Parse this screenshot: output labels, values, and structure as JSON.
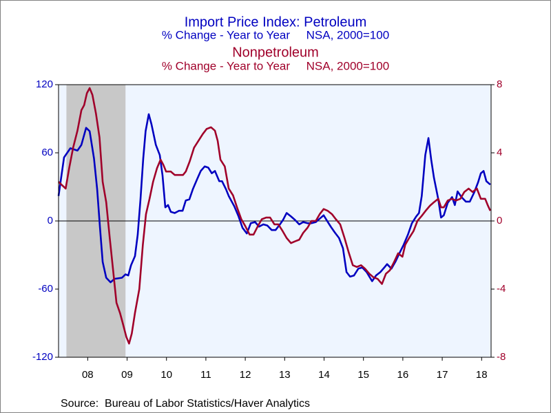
{
  "chart_data": {
    "type": "line",
    "source": "Source:  Bureau of Labor Statistics/Haver Analytics",
    "xlim": [
      2007.76,
      2018.74
    ],
    "xticks": [
      {
        "value": 2008.5,
        "label": "08"
      },
      {
        "value": 2009.5,
        "label": "09"
      },
      {
        "value": 2010.5,
        "label": "10"
      },
      {
        "value": 2011.5,
        "label": "11"
      },
      {
        "value": 2012.5,
        "label": "12"
      },
      {
        "value": 2013.5,
        "label": "13"
      },
      {
        "value": 2014.5,
        "label": "14"
      },
      {
        "value": 2015.5,
        "label": "15"
      },
      {
        "value": 2016.5,
        "label": "16"
      },
      {
        "value": 2017.5,
        "label": "17"
      },
      {
        "value": 2018.5,
        "label": "18"
      }
    ],
    "ylim": [
      -120,
      120
    ],
    "yticks": [
      -120,
      -60,
      0,
      60,
      120
    ],
    "y2lim": [
      -8,
      8
    ],
    "y2ticks": [
      -8,
      -4,
      0,
      4,
      8
    ],
    "recession_shading": [
      2007.96,
      2009.46
    ],
    "series": [
      {
        "name": "Import Price Index: Petroleum",
        "subtitle": "% Change - Year to Year     NSA, 2000=100",
        "color": "#0000c0",
        "axis": "y",
        "x": [
          2007.76,
          2007.9,
          2008.06,
          2008.24,
          2008.34,
          2008.46,
          2008.55,
          2008.66,
          2008.74,
          2008.81,
          2008.88,
          2008.97,
          2009.08,
          2009.18,
          2009.37,
          2009.46,
          2009.53,
          2009.6,
          2009.7,
          2009.77,
          2009.84,
          2009.91,
          2009.97,
          2010.05,
          2010.12,
          2010.23,
          2010.33,
          2010.4,
          2010.47,
          2010.54,
          2010.61,
          2010.71,
          2010.82,
          2010.91,
          2010.99,
          2011.08,
          2011.17,
          2011.28,
          2011.37,
          2011.47,
          2011.56,
          2011.65,
          2011.73,
          2011.84,
          2011.91,
          2012.01,
          2012.08,
          2012.22,
          2012.33,
          2012.43,
          2012.54,
          2012.64,
          2012.75,
          2012.85,
          2012.96,
          2013.06,
          2013.17,
          2013.27,
          2013.38,
          2013.46,
          2013.55,
          2013.66,
          2013.76,
          2013.87,
          2013.97,
          2014.08,
          2014.18,
          2014.29,
          2014.39,
          2014.49,
          2014.56,
          2014.67,
          2014.77,
          2014.88,
          2014.98,
          2015.07,
          2015.16,
          2015.26,
          2015.37,
          2015.47,
          2015.58,
          2015.72,
          2015.82,
          2015.93,
          2016.03,
          2016.1,
          2016.21,
          2016.31,
          2016.42,
          2016.52,
          2016.63,
          2016.73,
          2016.84,
          2016.91,
          2016.98,
          2017.07,
          2017.15,
          2017.22,
          2017.29,
          2017.4,
          2017.47,
          2017.54,
          2017.64,
          2017.75,
          2017.82,
          2017.89,
          2017.99,
          2018.1,
          2018.2,
          2018.31,
          2018.41,
          2018.48,
          2018.55,
          2018.62,
          2018.72
        ],
        "values": [
          22,
          56,
          64,
          62,
          67,
          82,
          79,
          55,
          28,
          -5,
          -36,
          -50,
          -54,
          -51,
          -50,
          -47,
          -48,
          -39,
          -31,
          -12,
          19,
          55,
          79,
          94,
          85,
          67,
          58,
          40,
          12,
          14,
          8,
          7,
          9,
          9,
          18,
          19,
          28,
          37,
          44,
          48,
          47,
          42,
          44,
          35,
          35,
          28,
          22,
          13,
          4,
          -6,
          -11,
          -2,
          -1,
          -5,
          -3,
          -4,
          -8,
          -8,
          -3,
          1,
          7,
          4,
          1,
          -3,
          -1,
          -2,
          -2,
          -1,
          2,
          5,
          1,
          -5,
          -10,
          -15,
          -24,
          -45,
          -49,
          -48,
          -42,
          -41,
          -45,
          -53,
          -48,
          -45,
          -41,
          -38,
          -42,
          -36,
          -28,
          -21,
          -12,
          -2,
          4,
          7,
          22,
          58,
          73,
          54,
          38,
          19,
          3,
          5,
          16,
          21,
          14,
          26,
          21,
          17,
          17,
          25,
          34,
          42,
          44,
          35,
          32
        ]
      },
      {
        "name": "Nonpetroleum",
        "subtitle": "% Change - Year to Year     NSA, 2000=100",
        "color": "#a0002a",
        "axis": "y2",
        "x": [
          2007.76,
          2007.85,
          2007.94,
          2008.03,
          2008.13,
          2008.24,
          2008.34,
          2008.41,
          2008.48,
          2008.55,
          2008.62,
          2008.71,
          2008.8,
          2008.88,
          2008.97,
          2009.06,
          2009.15,
          2009.23,
          2009.32,
          2009.39,
          2009.48,
          2009.55,
          2009.62,
          2009.7,
          2009.81,
          2009.9,
          2009.98,
          2010.07,
          2010.16,
          2010.26,
          2010.35,
          2010.42,
          2010.49,
          2010.61,
          2010.71,
          2010.82,
          2010.92,
          2010.99,
          2011.09,
          2011.2,
          2011.31,
          2011.42,
          2011.52,
          2011.63,
          2011.73,
          2011.8,
          2011.87,
          2011.98,
          2012.08,
          2012.19,
          2012.29,
          2012.4,
          2012.5,
          2012.61,
          2012.71,
          2012.82,
          2012.92,
          2013.03,
          2013.13,
          2013.24,
          2013.34,
          2013.45,
          2013.55,
          2013.66,
          2013.76,
          2013.87,
          2013.97,
          2014.08,
          2014.18,
          2014.29,
          2014.39,
          2014.49,
          2014.59,
          2014.7,
          2014.8,
          2014.91,
          2015.02,
          2015.12,
          2015.23,
          2015.33,
          2015.44,
          2015.54,
          2015.65,
          2015.75,
          2015.86,
          2015.97,
          2016.07,
          2016.17,
          2016.28,
          2016.38,
          2016.49,
          2016.56,
          2016.66,
          2016.77,
          2016.87,
          2016.98,
          2017.08,
          2017.19,
          2017.29,
          2017.4,
          2017.47,
          2017.54,
          2017.64,
          2017.75,
          2017.85,
          2017.96,
          2018.06,
          2018.17,
          2018.27,
          2018.38,
          2018.48,
          2018.59,
          2018.66,
          2018.72
        ],
        "values": [
          2.3,
          2.1,
          1.9,
          3.1,
          4.3,
          5.3,
          6.5,
          6.8,
          7.5,
          7.8,
          7.4,
          6.3,
          4.9,
          2.3,
          1.1,
          -1.0,
          -3.0,
          -4.8,
          -5.4,
          -6.0,
          -6.8,
          -7.2,
          -6.6,
          -5.4,
          -4.0,
          -1.4,
          0.4,
          1.3,
          2.3,
          3.1,
          3.6,
          3.3,
          2.9,
          2.9,
          2.7,
          2.7,
          2.7,
          2.9,
          3.5,
          4.3,
          4.7,
          5.1,
          5.4,
          5.5,
          5.3,
          4.7,
          3.6,
          3.2,
          1.9,
          1.5,
          0.8,
          0.1,
          -0.3,
          -0.8,
          -0.8,
          -0.3,
          0.1,
          0.2,
          0.2,
          -0.2,
          -0.2,
          -0.6,
          -1.0,
          -1.3,
          -1.2,
          -1.1,
          -0.7,
          -0.4,
          0.0,
          0.0,
          0.4,
          0.7,
          0.6,
          0.4,
          0.1,
          -0.2,
          -1.0,
          -1.8,
          -2.6,
          -2.7,
          -2.6,
          -2.8,
          -3.1,
          -3.3,
          -3.4,
          -3.7,
          -3.1,
          -2.9,
          -2.4,
          -1.9,
          -2.1,
          -1.4,
          -1.0,
          -0.6,
          0.0,
          0.3,
          0.6,
          0.9,
          1.1,
          1.3,
          0.8,
          0.8,
          1.2,
          1.3,
          1.2,
          1.3,
          1.7,
          1.9,
          1.7,
          1.9,
          1.3,
          1.3,
          0.9,
          0.6
        ]
      }
    ]
  }
}
